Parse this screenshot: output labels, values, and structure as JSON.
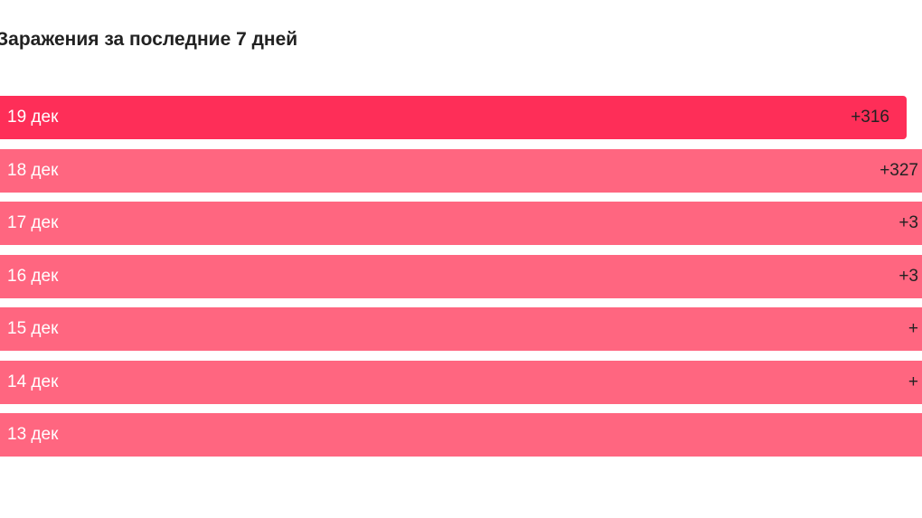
{
  "header": {
    "title": "Заражения за последние 7 дней"
  },
  "rows": [
    {
      "label": "19 дек",
      "value": "+316"
    },
    {
      "label": "18 дек",
      "value": "+327"
    },
    {
      "label": "17 дек",
      "value": "+3"
    },
    {
      "label": "16 дек",
      "value": "+3"
    },
    {
      "label": "15 дек",
      "value": "+"
    },
    {
      "label": "14 дек",
      "value": "+"
    },
    {
      "label": "13 дек",
      "value": ""
    }
  ]
}
